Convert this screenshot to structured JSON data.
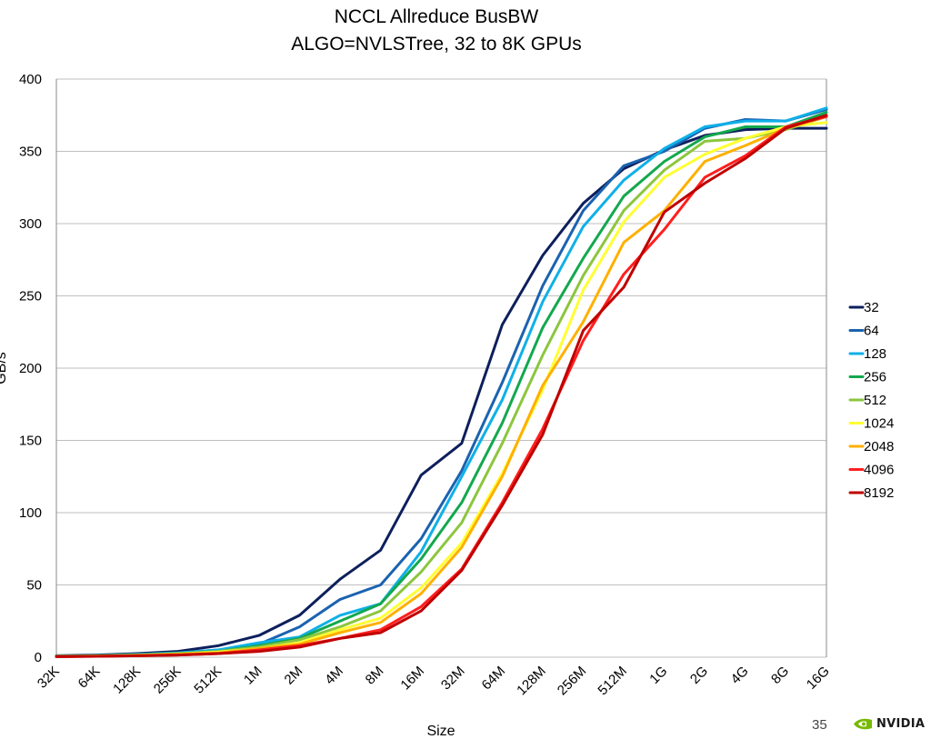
{
  "page": {
    "number": "35",
    "logo_text": "NVIDIA",
    "logo_color": "#76b900"
  },
  "chart_data": {
    "type": "line",
    "title": "NCCL Allreduce BusBW",
    "subtitle": "ALGO=NVLSTree, 32 to 8K GPUs",
    "xlabel": "Size",
    "ylabel": "GB/s",
    "ylim": [
      0,
      400
    ],
    "yticks": [
      0,
      50,
      100,
      150,
      200,
      250,
      300,
      350,
      400
    ],
    "grid": true,
    "legend_position": "right",
    "x": [
      "32K",
      "64K",
      "128K",
      "256K",
      "512K",
      "1M",
      "2M",
      "4M",
      "8M",
      "16M",
      "32M",
      "64M",
      "128M",
      "256M",
      "512M",
      "1G",
      "2G",
      "4G",
      "8G",
      "16G"
    ],
    "series": [
      {
        "name": "32",
        "color": "#0d1f5c",
        "values": [
          1,
          1.5,
          2.5,
          4,
          8,
          15,
          29,
          54,
          74,
          126,
          148,
          230,
          278,
          314,
          338,
          351,
          361,
          365,
          366,
          366
        ]
      },
      {
        "name": "64",
        "color": "#1b62b0",
        "values": [
          0.8,
          1.2,
          2,
          3,
          5,
          9,
          21,
          40,
          50,
          82,
          129,
          190,
          257,
          309,
          340,
          350,
          366,
          372,
          371,
          379
        ]
      },
      {
        "name": "128",
        "color": "#0fb0e8",
        "values": [
          0.7,
          1,
          1.8,
          3,
          5,
          10,
          14,
          29,
          37,
          73,
          125,
          178,
          246,
          298,
          330,
          352,
          367,
          371,
          371,
          380
        ]
      },
      {
        "name": "256",
        "color": "#13a84e",
        "values": [
          0.7,
          1,
          1.6,
          2.5,
          4,
          8,
          13,
          25,
          37,
          68,
          107,
          162,
          228,
          276,
          319,
          343,
          360,
          367,
          367,
          377
        ]
      },
      {
        "name": "512",
        "color": "#8cc63e",
        "values": [
          0.6,
          0.9,
          1.5,
          2.5,
          4,
          7,
          12,
          21,
          32,
          59,
          93,
          148,
          209,
          264,
          309,
          337,
          357,
          359,
          365,
          374
        ]
      },
      {
        "name": "1024",
        "color": "#ffff33",
        "values": [
          0.5,
          0.8,
          1.3,
          2,
          3.5,
          6,
          10,
          19,
          27,
          48,
          79,
          127,
          185,
          254,
          301,
          332,
          348,
          359,
          367,
          370
        ]
      },
      {
        "name": "2048",
        "color": "#ffb000",
        "values": [
          0.5,
          0.7,
          1.2,
          2,
          3,
          6,
          9,
          17,
          24,
          44,
          76,
          125,
          188,
          232,
          287,
          309,
          343,
          354,
          366,
          374
        ]
      },
      {
        "name": "4096",
        "color": "#ff1f1f",
        "values": [
          0.4,
          0.6,
          1,
          1.5,
          2.5,
          5,
          8,
          13,
          19,
          35,
          61,
          107,
          158,
          219,
          265,
          296,
          332,
          347,
          367,
          374
        ]
      },
      {
        "name": "8192",
        "color": "#c00000",
        "values": [
          0.4,
          0.6,
          1,
          1.5,
          2.5,
          4,
          7,
          13,
          17,
          32,
          60,
          105,
          154,
          226,
          256,
          308,
          328,
          345,
          366,
          375
        ]
      }
    ]
  }
}
